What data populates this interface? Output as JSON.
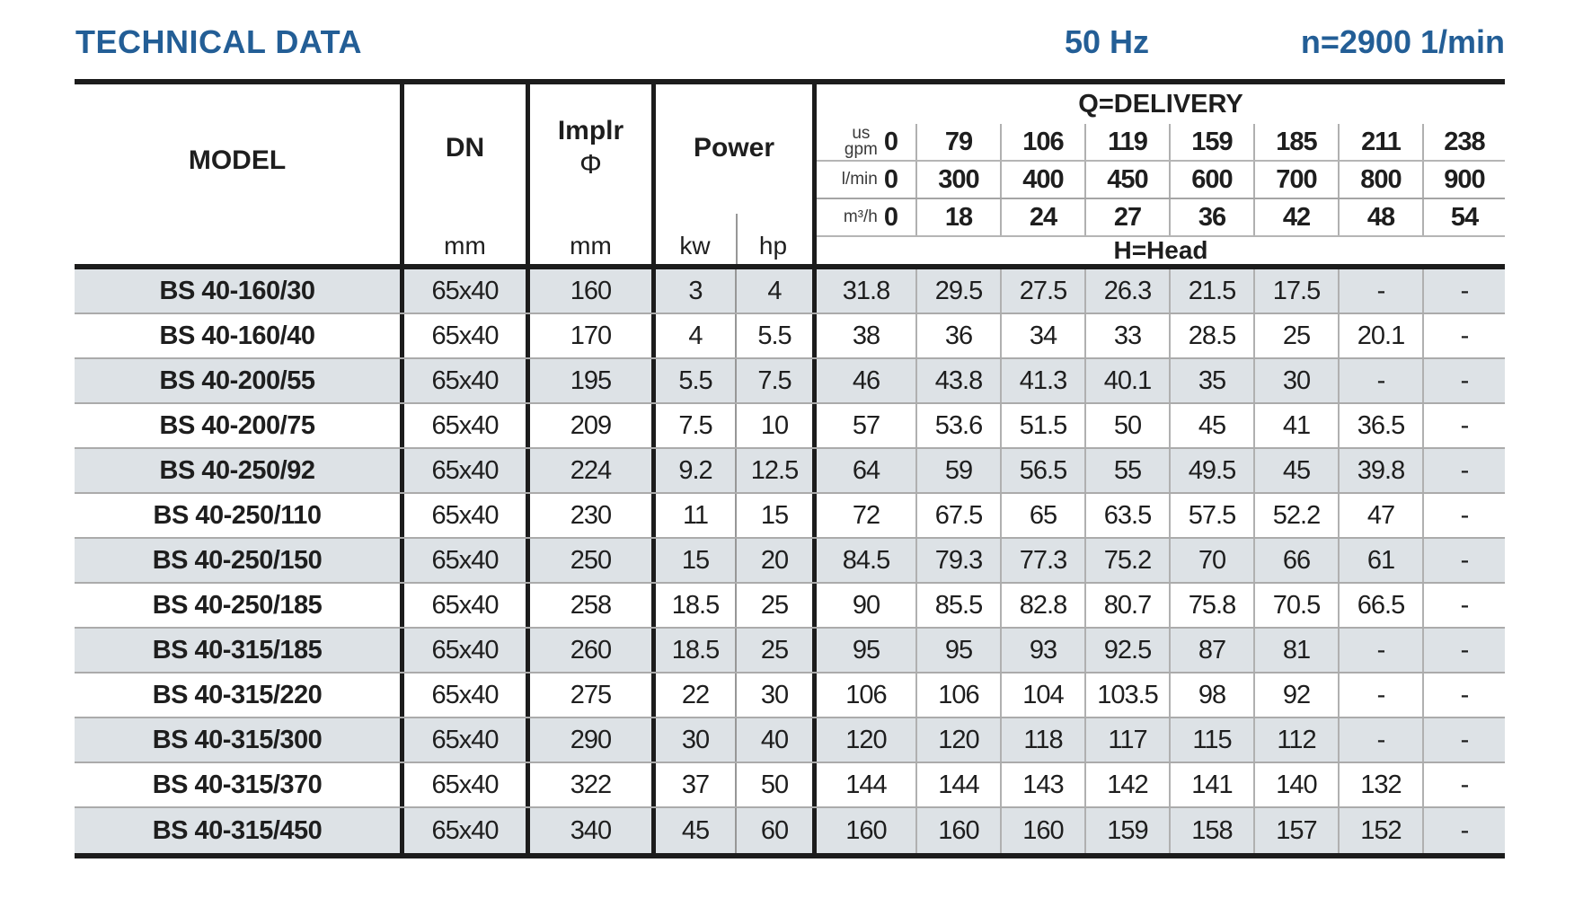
{
  "header": {
    "title": "TECHNICAL DATA",
    "frequency": "50 Hz",
    "speed": "n=2900 1/min"
  },
  "table": {
    "model_header": "MODEL",
    "dn_header": "DN",
    "dn_unit": "mm",
    "impeller_header": "Implr",
    "impeller_symbol": "Φ",
    "impeller_unit": "mm",
    "power_header": "Power",
    "power_units": [
      "kw",
      "hp"
    ],
    "delivery_title": "Q=DELIVERY",
    "head_title": "H=Head",
    "flow_rows": [
      {
        "unit_top": "us",
        "unit": "gpm",
        "values": [
          "0",
          "79",
          "106",
          "119",
          "159",
          "185",
          "211",
          "238"
        ]
      },
      {
        "unit_top": "",
        "unit": "l/min",
        "values": [
          "0",
          "300",
          "400",
          "450",
          "600",
          "700",
          "800",
          "900"
        ]
      },
      {
        "unit_top": "",
        "unit": "m³/h",
        "values": [
          "0",
          "18",
          "24",
          "27",
          "36",
          "42",
          "48",
          "54"
        ]
      }
    ],
    "rows": [
      {
        "model": "BS 40-160/30",
        "dn": "65x40",
        "impeller": "160",
        "kw": "3",
        "hp": "4",
        "head": [
          "31.8",
          "29.5",
          "27.5",
          "26.3",
          "21.5",
          "17.5",
          "-",
          "-"
        ]
      },
      {
        "model": "BS 40-160/40",
        "dn": "65x40",
        "impeller": "170",
        "kw": "4",
        "hp": "5.5",
        "head": [
          "38",
          "36",
          "34",
          "33",
          "28.5",
          "25",
          "20.1",
          "-"
        ]
      },
      {
        "model": "BS 40-200/55",
        "dn": "65x40",
        "impeller": "195",
        "kw": "5.5",
        "hp": "7.5",
        "head": [
          "46",
          "43.8",
          "41.3",
          "40.1",
          "35",
          "30",
          "-",
          "-"
        ]
      },
      {
        "model": "BS 40-200/75",
        "dn": "65x40",
        "impeller": "209",
        "kw": "7.5",
        "hp": "10",
        "head": [
          "57",
          "53.6",
          "51.5",
          "50",
          "45",
          "41",
          "36.5",
          "-"
        ]
      },
      {
        "model": "BS 40-250/92",
        "dn": "65x40",
        "impeller": "224",
        "kw": "9.2",
        "hp": "12.5",
        "head": [
          "64",
          "59",
          "56.5",
          "55",
          "49.5",
          "45",
          "39.8",
          "-"
        ]
      },
      {
        "model": "BS 40-250/110",
        "dn": "65x40",
        "impeller": "230",
        "kw": "11",
        "hp": "15",
        "head": [
          "72",
          "67.5",
          "65",
          "63.5",
          "57.5",
          "52.2",
          "47",
          "-"
        ]
      },
      {
        "model": "BS 40-250/150",
        "dn": "65x40",
        "impeller": "250",
        "kw": "15",
        "hp": "20",
        "head": [
          "84.5",
          "79.3",
          "77.3",
          "75.2",
          "70",
          "66",
          "61",
          "-"
        ]
      },
      {
        "model": "BS 40-250/185",
        "dn": "65x40",
        "impeller": "258",
        "kw": "18.5",
        "hp": "25",
        "head": [
          "90",
          "85.5",
          "82.8",
          "80.7",
          "75.8",
          "70.5",
          "66.5",
          "-"
        ]
      },
      {
        "model": "BS 40-315/185",
        "dn": "65x40",
        "impeller": "260",
        "kw": "18.5",
        "hp": "25",
        "head": [
          "95",
          "95",
          "93",
          "92.5",
          "87",
          "81",
          "-",
          "-"
        ]
      },
      {
        "model": "BS 40-315/220",
        "dn": "65x40",
        "impeller": "275",
        "kw": "22",
        "hp": "30",
        "head": [
          "106",
          "106",
          "104",
          "103.5",
          "98",
          "92",
          "-",
          "-"
        ]
      },
      {
        "model": "BS 40-315/300",
        "dn": "65x40",
        "impeller": "290",
        "kw": "30",
        "hp": "40",
        "head": [
          "120",
          "120",
          "118",
          "117",
          "115",
          "112",
          "-",
          "-"
        ]
      },
      {
        "model": "BS 40-315/370",
        "dn": "65x40",
        "impeller": "322",
        "kw": "37",
        "hp": "50",
        "head": [
          "144",
          "144",
          "143",
          "142",
          "141",
          "140",
          "132",
          "-"
        ]
      },
      {
        "model": "BS 40-315/450",
        "dn": "65x40",
        "impeller": "340",
        "kw": "45",
        "hp": "60",
        "head": [
          "160",
          "160",
          "160",
          "159",
          "158",
          "157",
          "152",
          "-"
        ]
      }
    ]
  },
  "colors": {
    "accent": "#235e96",
    "row_alt": "#dde2e6",
    "thick_border": "#1c1c1c",
    "thin_border": "#979797"
  }
}
